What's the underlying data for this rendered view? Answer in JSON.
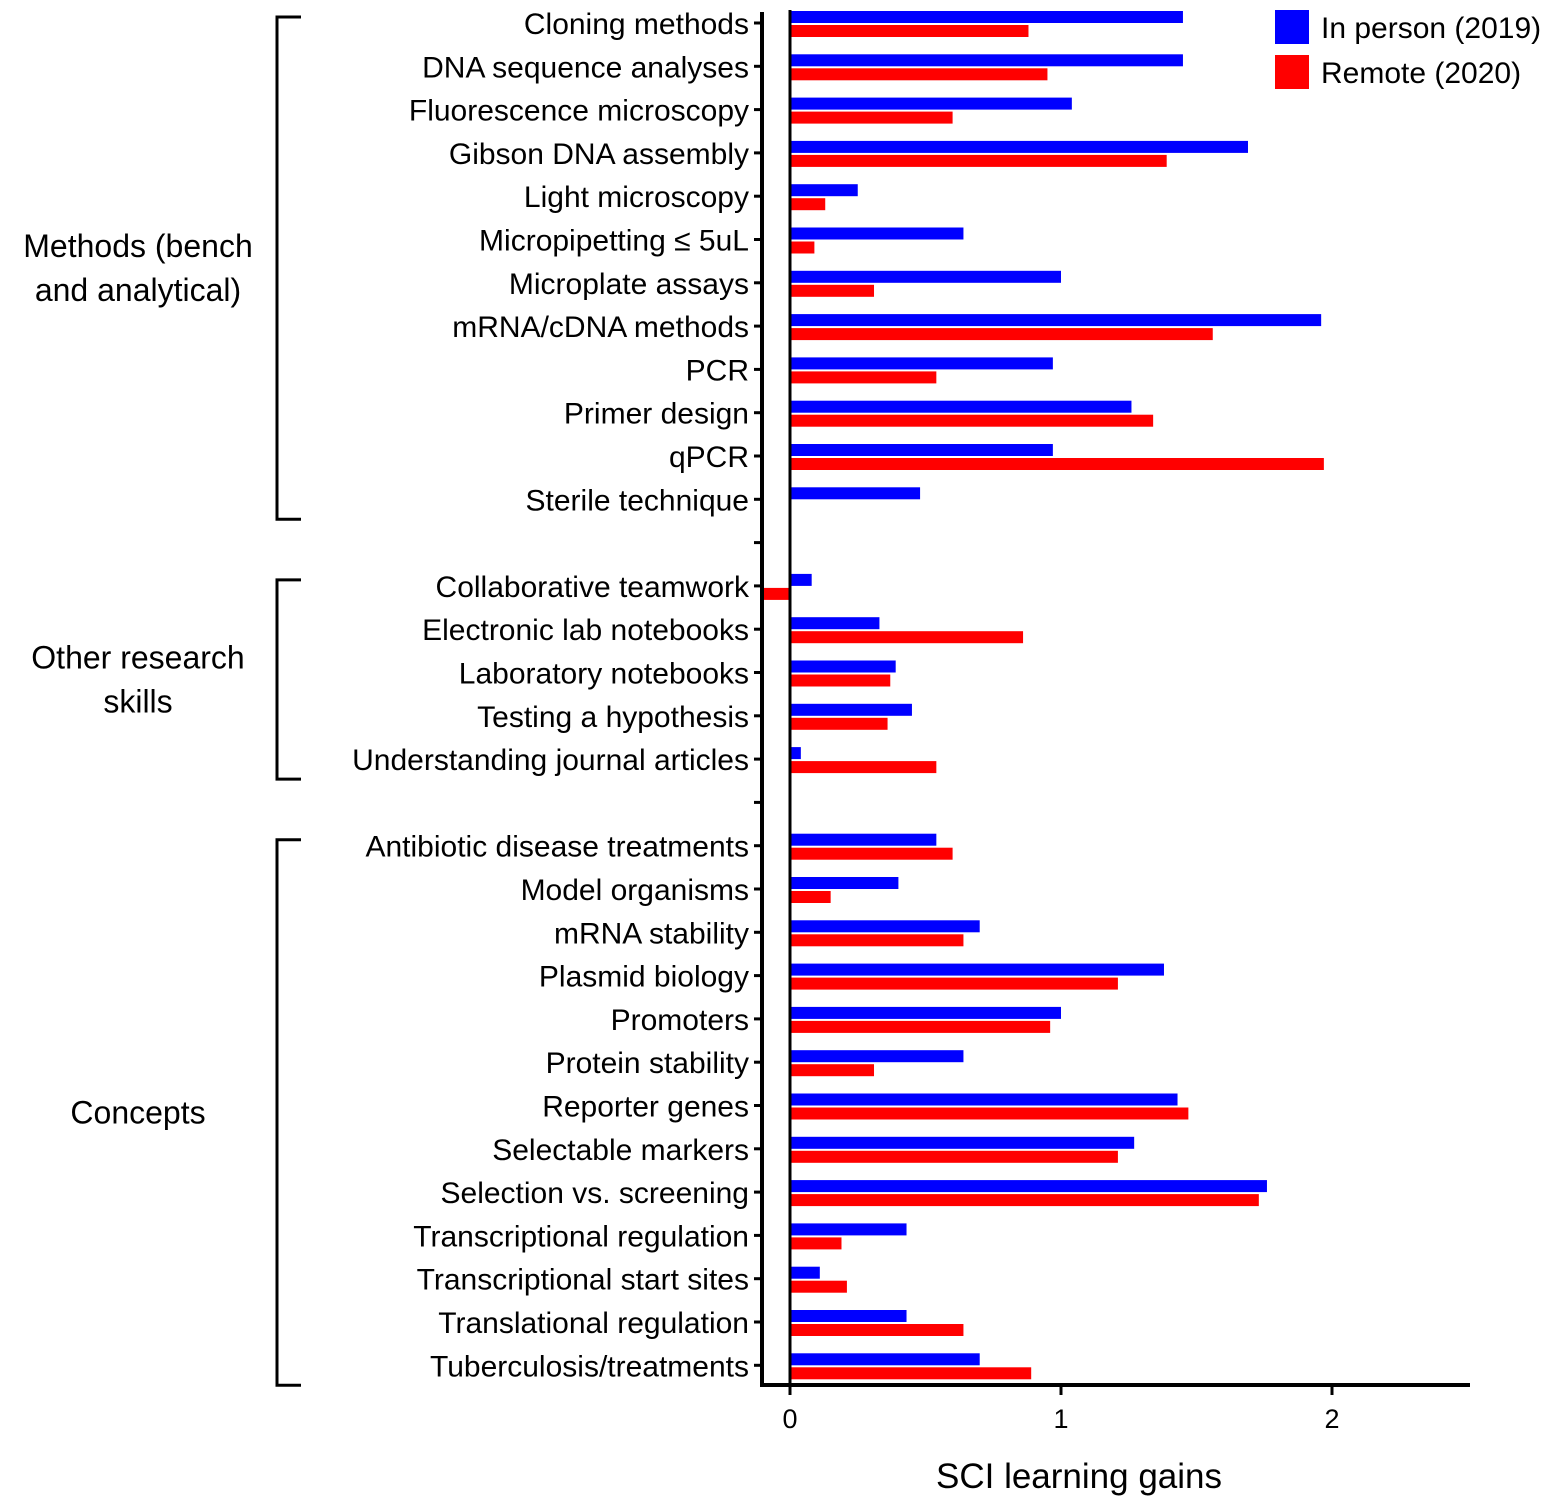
{
  "chart_data": {
    "type": "bar",
    "orientation": "horizontal",
    "xlabel": "SCI learning gains",
    "ylabel": "",
    "xlim": [
      -0.1,
      2.5
    ],
    "xticks": [
      "0",
      "1",
      "2"
    ],
    "xtick_values": [
      0,
      1,
      2
    ],
    "grid": false,
    "legend_position": "top-right",
    "series": [
      {
        "name": "In person (2019)",
        "color": "#0000ff"
      },
      {
        "name": "Remote (2020)",
        "color": "#ff0000"
      }
    ],
    "groups": [
      {
        "name": "Methods (bench and analytical)",
        "name_lines": [
          "Methods (bench",
          "and analytical)"
        ],
        "categories": [
          "Cloning methods",
          "DNA sequence analyses",
          "Fluorescence microscopy",
          "Gibson DNA assembly",
          "Light microscopy",
          "Micropipetting ≤ 5uL",
          "Microplate assays",
          "mRNA/cDNA methods",
          "PCR",
          "Primer design",
          "qPCR",
          "Sterile technique"
        ],
        "in_person": [
          1.45,
          1.45,
          1.04,
          1.69,
          0.25,
          0.64,
          1.0,
          1.96,
          0.97,
          1.26,
          0.97,
          0.48
        ],
        "remote": [
          0.88,
          0.95,
          0.6,
          1.39,
          0.13,
          0.09,
          0.31,
          1.56,
          0.54,
          1.34,
          1.97,
          0.0
        ]
      },
      {
        "name": "Other research skills",
        "name_lines": [
          "Other research",
          "skills"
        ],
        "categories": [
          "Collaborative teamwork",
          "Electronic lab notebooks",
          "Laboratory notebooks",
          "Testing a hypothesis",
          "Understanding journal articles"
        ],
        "in_person": [
          0.08,
          0.33,
          0.39,
          0.45,
          0.04
        ],
        "remote": [
          -0.1,
          0.86,
          0.37,
          0.36,
          0.54
        ]
      },
      {
        "name": "Concepts",
        "name_lines": [
          "Concepts"
        ],
        "categories": [
          "Antibiotic disease treatments",
          "Model organisms",
          "mRNA stability",
          "Plasmid biology",
          "Promoters",
          "Protein stability",
          "Reporter genes",
          "Selectable markers",
          "Selection vs. screening",
          "Transcriptional regulation",
          "Transcriptional start sites",
          "Translational regulation",
          "Tuberculosis/treatments"
        ],
        "in_person": [
          0.54,
          0.4,
          0.7,
          1.38,
          1.0,
          0.64,
          1.43,
          1.27,
          1.76,
          0.43,
          0.11,
          0.43,
          0.7
        ],
        "remote": [
          0.6,
          0.15,
          0.64,
          1.21,
          0.96,
          0.31,
          1.47,
          1.21,
          1.73,
          0.19,
          0.21,
          0.64,
          0.89
        ]
      }
    ]
  }
}
